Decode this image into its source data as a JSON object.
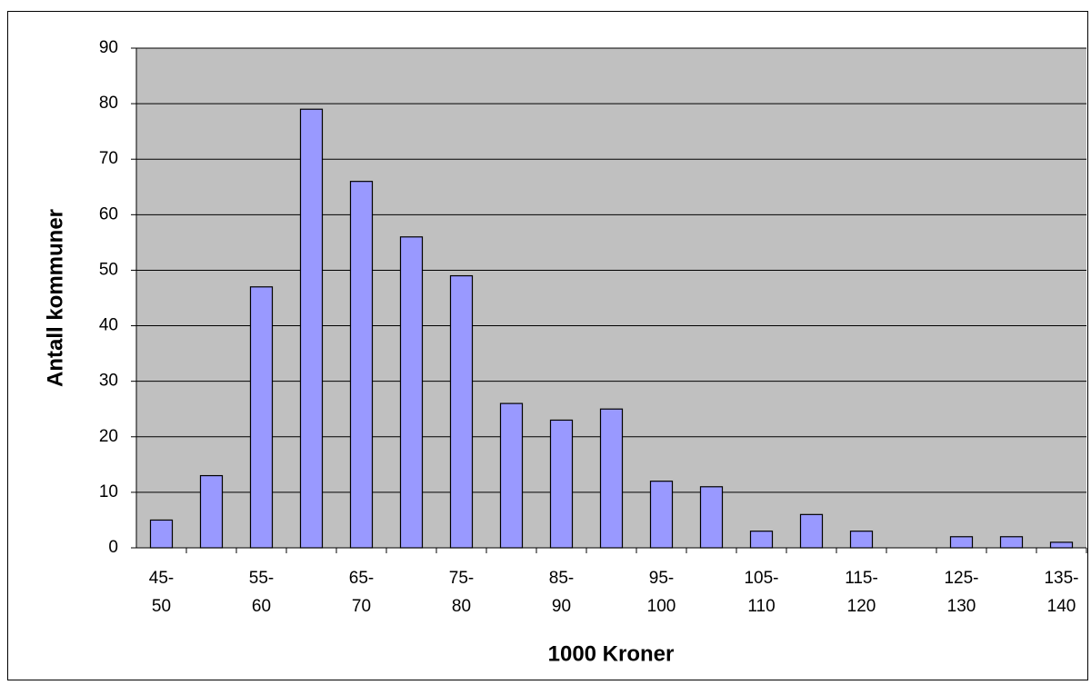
{
  "chart_data": {
    "type": "bar",
    "x_label": "1000 Kroner",
    "y_label": "Antall kommuner",
    "categories": [
      "45-\n50",
      null,
      "55-\n60",
      null,
      "65-\n70",
      null,
      "75-\n80",
      null,
      "85-\n90",
      null,
      "95-\n100",
      null,
      "105-\n110",
      null,
      "115-\n120",
      null,
      "125-\n130",
      null,
      "135-\n140"
    ],
    "values": [
      5,
      13,
      47,
      79,
      66,
      56,
      49,
      26,
      23,
      25,
      12,
      11,
      3,
      6,
      3,
      0,
      2,
      2,
      1
    ],
    "color": "#9999ff",
    "ylim": [
      0,
      90
    ],
    "yticks": [
      0,
      10,
      20,
      30,
      40,
      50,
      60,
      70,
      80,
      90
    ],
    "grid": true
  }
}
